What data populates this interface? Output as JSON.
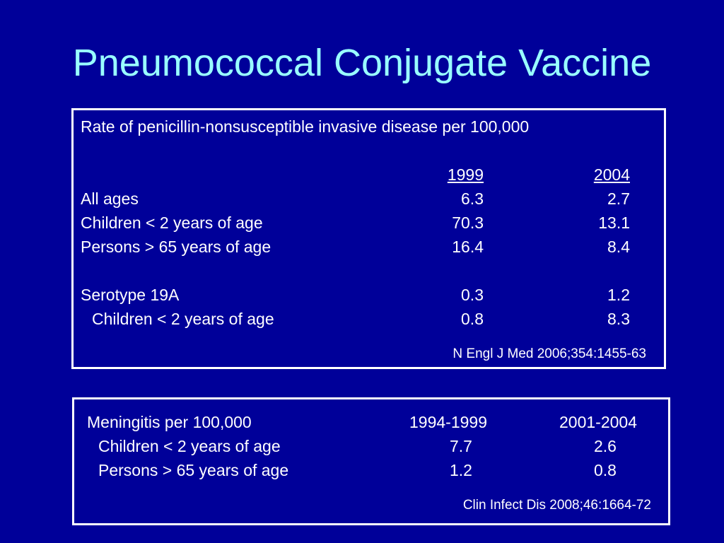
{
  "slide": {
    "title": "Pneumococcal Conjugate Vaccine"
  },
  "table1": {
    "heading": "Rate of penicillin-nonsusceptible invasive disease per 100,000",
    "col_headers": [
      "1999",
      "2004"
    ],
    "rows": [
      {
        "label": "All ages",
        "v1": "6.3",
        "v2": "2.7"
      },
      {
        "label": "Children < 2 years of age",
        "v1": "70.3",
        "v2": "13.1"
      },
      {
        "label": "Persons > 65 years of age",
        "v1": "16.4",
        "v2": "8.4"
      },
      {
        "label": "Serotype 19A",
        "v1": "0.3",
        "v2": "1.2"
      },
      {
        "label": "Children < 2 years of age",
        "v1": "0.8",
        "v2": "8.3"
      }
    ],
    "citation": "N Engl J Med 2006;354:1455-63"
  },
  "table2": {
    "heading": "Meningitis per 100,000",
    "col_headers": [
      "1994-1999",
      "2001-2004"
    ],
    "rows": [
      {
        "label": "Children < 2 years of age",
        "v1": "7.7",
        "v2": "2.6"
      },
      {
        "label": "Persons > 65 years of age",
        "v1": "1.2",
        "v2": "0.8"
      }
    ],
    "citation": "Clin Infect Dis 2008;46:1664-72"
  }
}
